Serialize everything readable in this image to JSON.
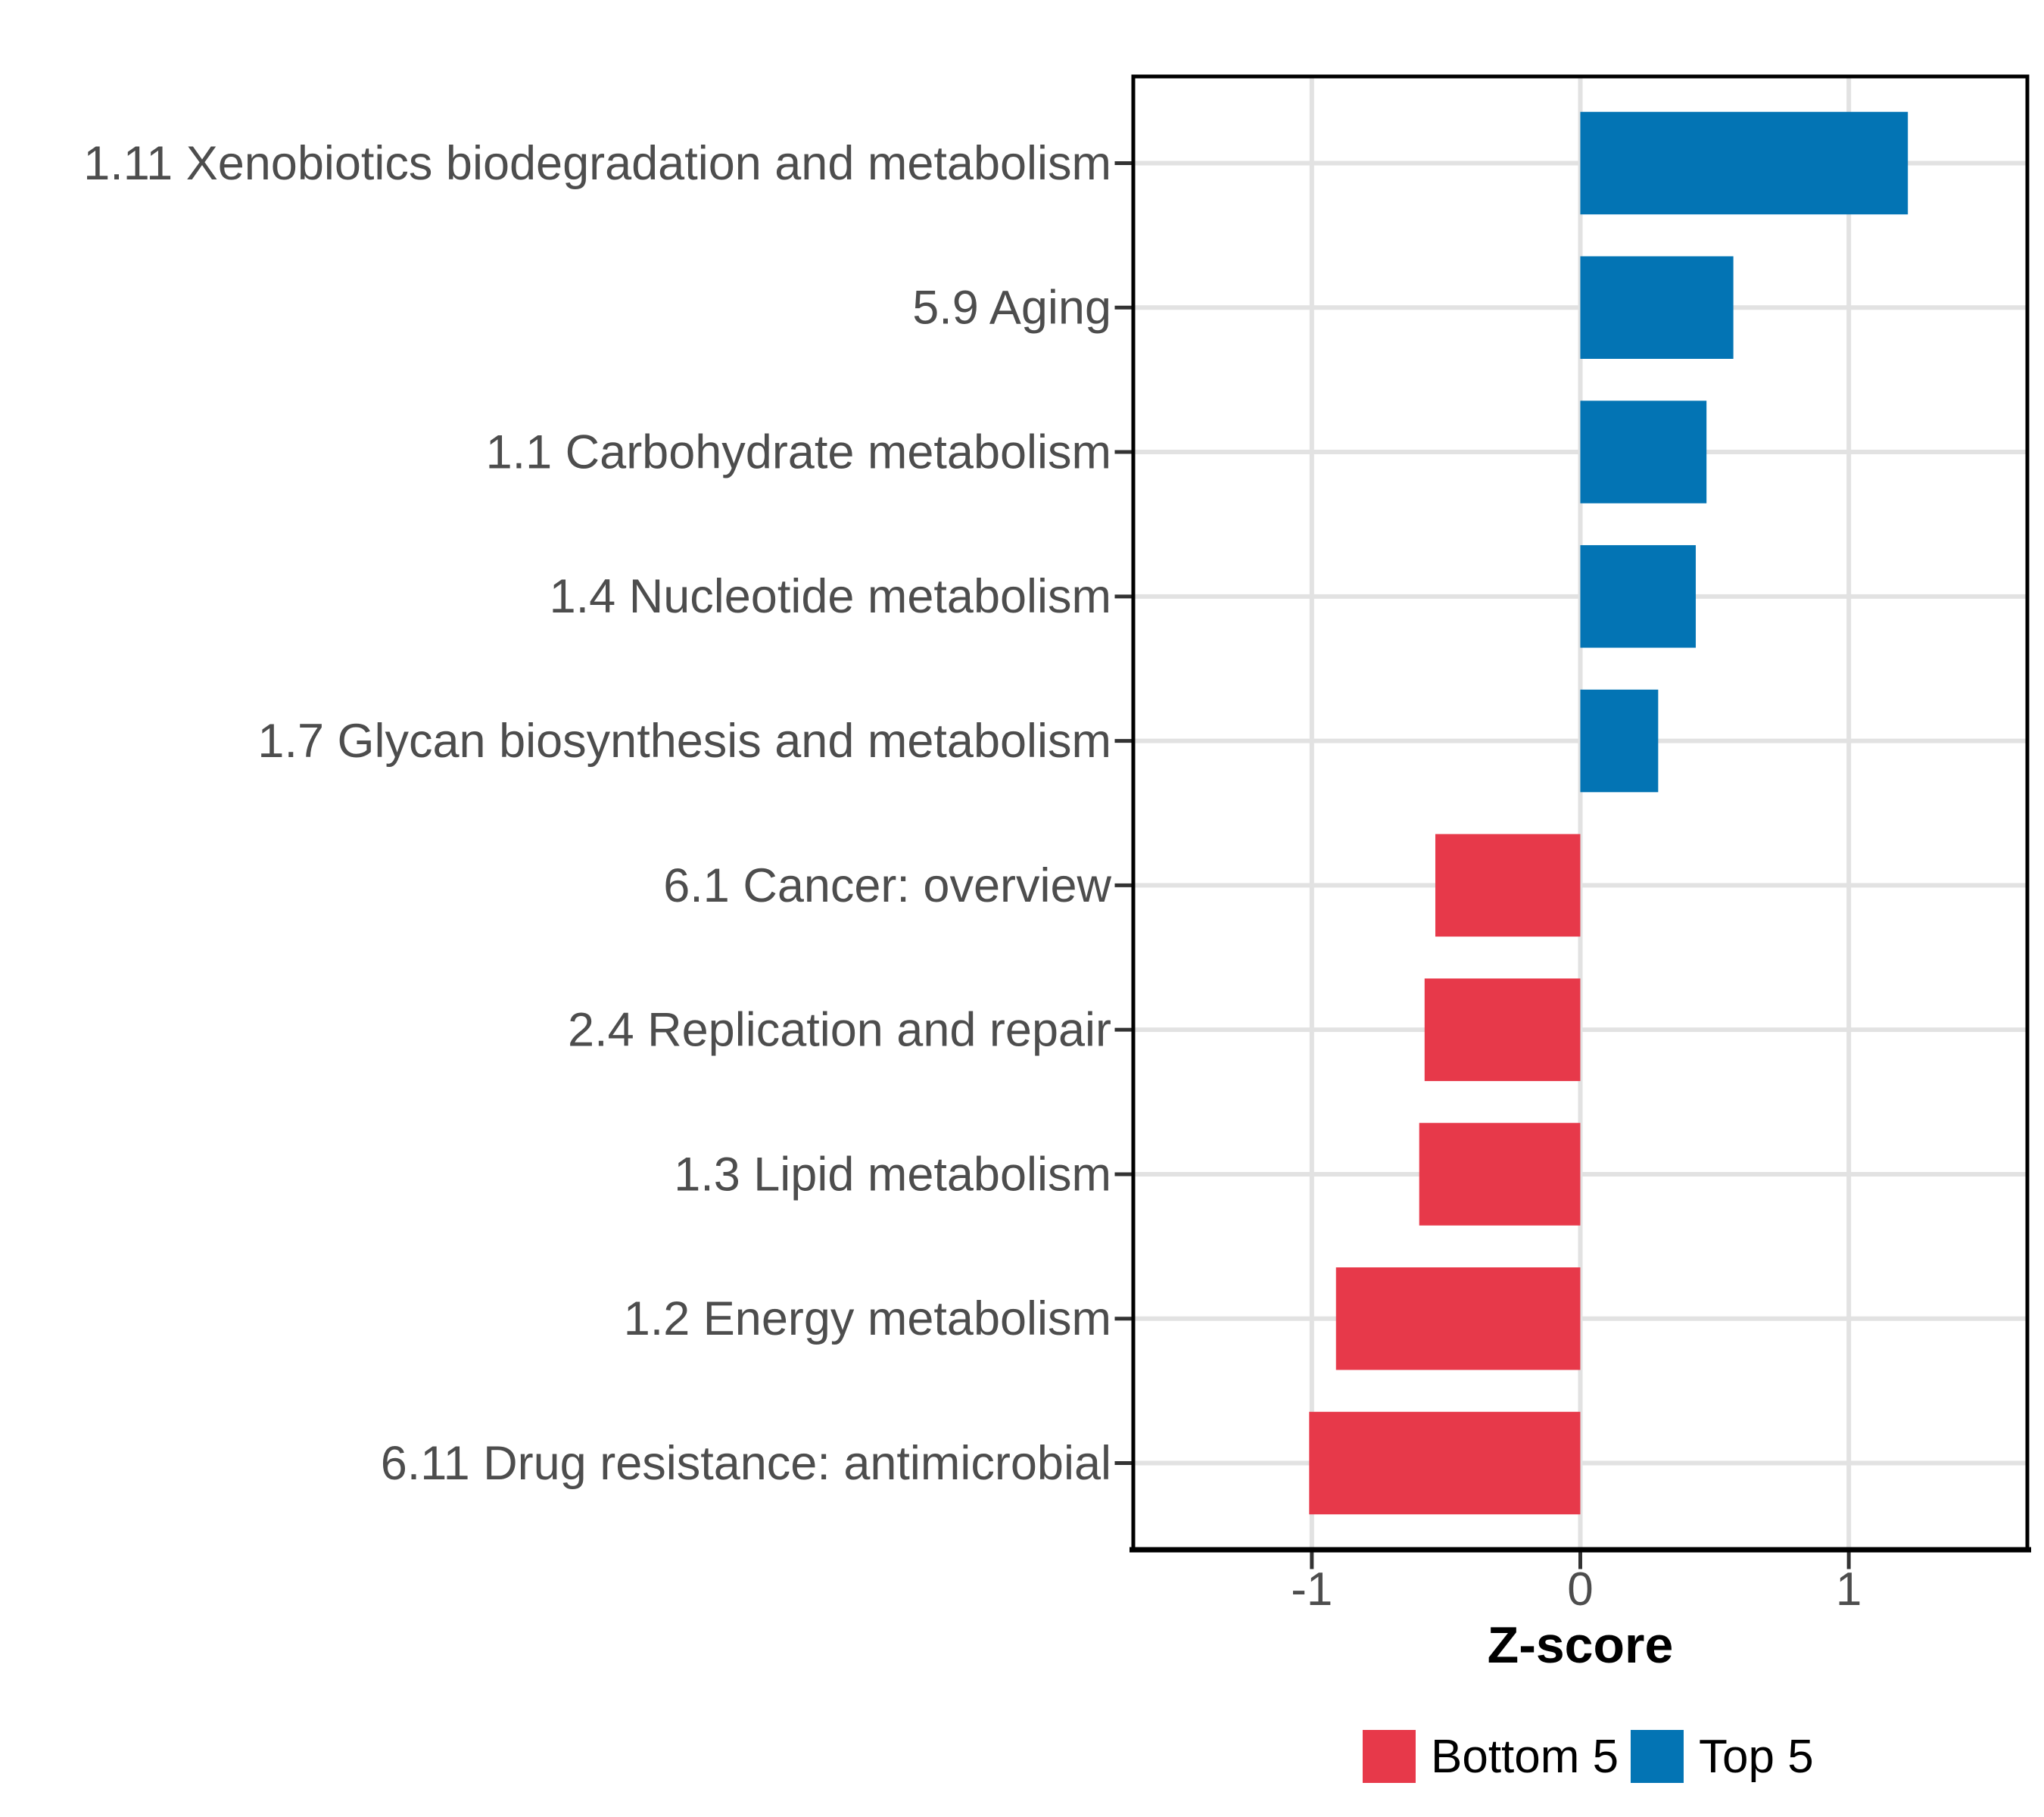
{
  "chart_data": {
    "type": "bar",
    "orientation": "horizontal",
    "title": "",
    "xlabel": "Z-score",
    "ylabel": "",
    "categories": [
      "1.11 Xenobiotics biodegradation and metabolism",
      "5.9 Aging",
      "1.1 Carbohydrate metabolism",
      "1.4 Nucleotide metabolism",
      "1.7 Glycan biosynthesis and metabolism",
      "6.1 Cancer: overview",
      "2.4 Replication and repair",
      "1.3 Lipid metabolism",
      "1.2 Energy metabolism",
      "6.11 Drug resistance: antimicrobial"
    ],
    "values": [
      1.22,
      0.57,
      0.47,
      0.43,
      0.29,
      -0.54,
      -0.58,
      -0.6,
      -0.91,
      -1.01
    ],
    "groups": [
      "Top 5",
      "Top 5",
      "Top 5",
      "Top 5",
      "Top 5",
      "Bottom 5",
      "Bottom 5",
      "Bottom 5",
      "Bottom 5",
      "Bottom 5"
    ],
    "group_colors": {
      "Bottom 5": "#E7394A",
      "Top 5": "#0374B4"
    },
    "xlim": [
      -1.665,
      1.665
    ],
    "x_ticks": [
      {
        "value": -1,
        "label": "-1"
      },
      {
        "value": 0,
        "label": "0"
      },
      {
        "value": 1,
        "label": "1"
      }
    ],
    "grid": true,
    "legend": {
      "position": "bottom",
      "entries": [
        {
          "label": "Bottom 5",
          "color": "#E7394A"
        },
        {
          "label": "Top 5",
          "color": "#0374B4"
        }
      ]
    }
  }
}
